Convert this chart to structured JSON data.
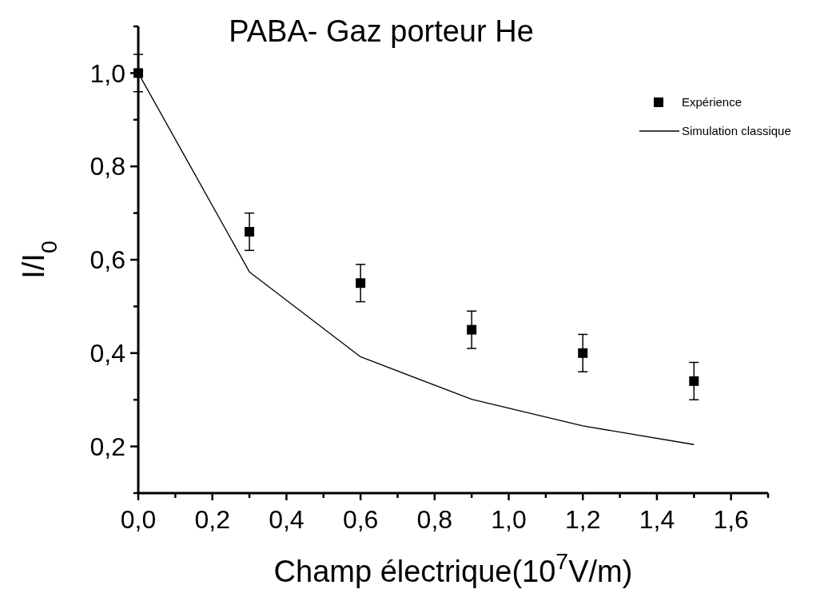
{
  "chart_data": {
    "type": "scatter",
    "title": "PABA- Gaz porteur He",
    "xlabel": "Champ électrique(10$^{7}$V/m)",
    "ylabel": "I/I$_{0}$",
    "x": [
      0,
      0.3,
      0.6,
      0.9,
      1.2,
      1.5
    ],
    "series": [
      {
        "name": "Expérience",
        "color": "#000000",
        "values": [
          1.0,
          0.66,
          0.55,
          0.45,
          0.4,
          0.34
        ],
        "errors": [
          0.04,
          0.04,
          0.04,
          0.04,
          0.04,
          0.04
        ],
        "marker": "square"
      },
      {
        "name": "Simulation classique",
        "type": "line",
        "color": "#000000",
        "values": [
          1.0,
          0.574,
          0.392,
          0.301,
          0.244,
          0.204
        ],
        "line_style": "solid"
      }
    ],
    "xlim": [
      0,
      1.7
    ],
    "xticks": [
      {
        "value": 0,
        "label": "0,0"
      },
      {
        "value": 0.1,
        "label": null
      },
      {
        "value": 0.2,
        "label": "0,2"
      },
      {
        "value": 0.3,
        "label": null
      },
      {
        "value": 0.4,
        "label": "0,4"
      },
      {
        "value": 0.5,
        "label": null
      },
      {
        "value": 0.6,
        "label": "0,6"
      },
      {
        "value": 0.7,
        "label": null
      },
      {
        "value": 0.8,
        "label": "0,8"
      },
      {
        "value": 0.9,
        "label": null
      },
      {
        "value": 1.0,
        "label": "1,0"
      },
      {
        "value": 1.1,
        "label": null
      },
      {
        "value": 1.2,
        "label": "1,2"
      },
      {
        "value": 1.3,
        "label": null
      },
      {
        "value": 1.4,
        "label": "1,4"
      },
      {
        "value": 1.5,
        "label": null
      },
      {
        "value": 1.6,
        "label": "1,6"
      },
      {
        "value": 1.7,
        "label": null
      }
    ],
    "ylim": [
      0.1,
      1.1
    ],
    "yticks": [
      {
        "value": 0.1,
        "label": null
      },
      {
        "value": 0.2,
        "label": "0,2"
      },
      {
        "value": 0.3,
        "label": null
      },
      {
        "value": 0.4,
        "label": "0,4"
      },
      {
        "value": 0.5,
        "label": null
      },
      {
        "value": 0.6,
        "label": "0,6"
      },
      {
        "value": 0.7,
        "label": null
      },
      {
        "value": 0.8,
        "label": "0,8"
      },
      {
        "value": 0.9,
        "label": null
      },
      {
        "value": 1.0,
        "label": "1,0"
      },
      {
        "value": 1.1,
        "label": null
      }
    ],
    "grid": false,
    "legend": "top right"
  }
}
